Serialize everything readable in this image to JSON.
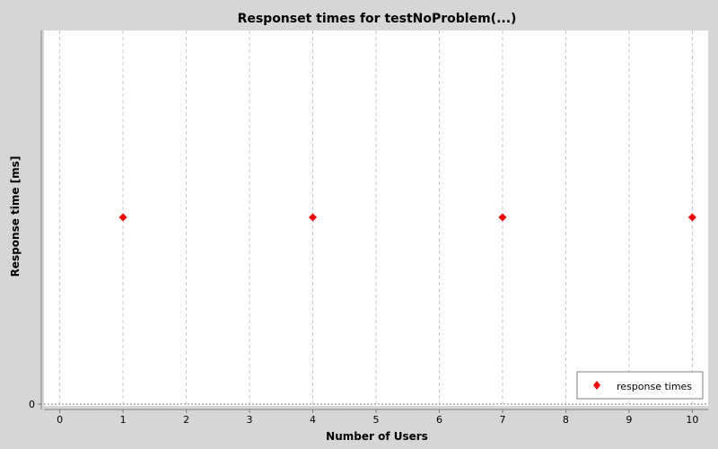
{
  "chart_data": {
    "type": "scatter",
    "title": "Responset times for testNoProblem(...)",
    "xlabel": "Number of Users",
    "ylabel": "Response time [ms]",
    "xlim": [
      -0.25,
      10.25
    ],
    "ylim": [
      0,
      1
    ],
    "x_ticks": [
      "0",
      "1",
      "2",
      "3",
      "4",
      "5",
      "6",
      "7",
      "8",
      "9",
      "10"
    ],
    "y_ticks": [
      "0"
    ],
    "grid": true,
    "legend_position": "bottom-right",
    "series": [
      {
        "name": "response times",
        "color": "#ff0000",
        "marker": "diamond",
        "x": [
          1,
          4,
          7,
          10
        ],
        "y": [
          0.5,
          0.5,
          0.5,
          0.5
        ]
      }
    ]
  }
}
